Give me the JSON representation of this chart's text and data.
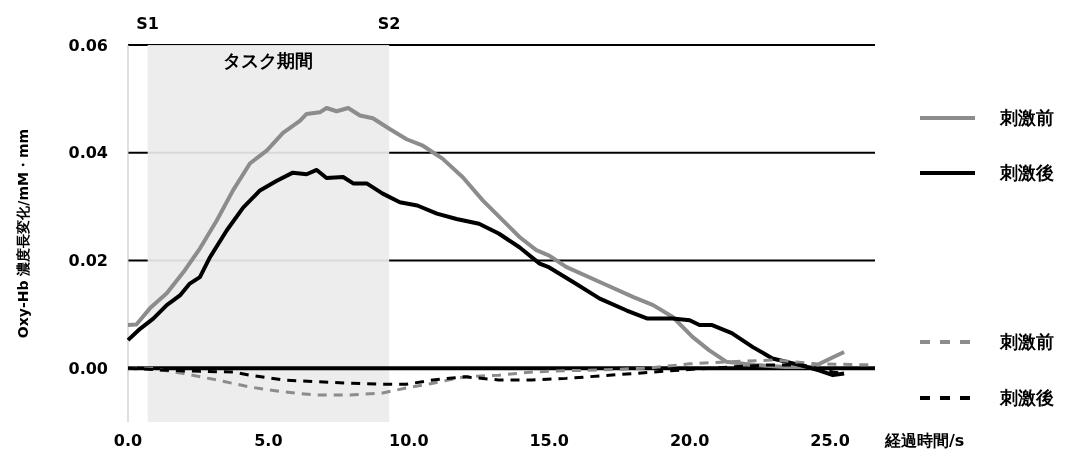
{
  "chart_data": {
    "type": "line",
    "xlabel": "経過時間/s",
    "ylabel": "Oxy-Hb 濃度長変化/mM・mm",
    "xlim": [
      0,
      26.6
    ],
    "ylim": [
      -0.01,
      0.06
    ],
    "xticks": [
      {
        "value": 0,
        "label": "0.0"
      },
      {
        "value": 5,
        "label": "5.0"
      },
      {
        "value": 10,
        "label": "10.0"
      },
      {
        "value": 15,
        "label": "15.0"
      },
      {
        "value": 20,
        "label": "20.0"
      },
      {
        "value": 25,
        "label": "25.0"
      }
    ],
    "yticks": [
      {
        "value": 0,
        "label": "0.00"
      },
      {
        "value": 0.02,
        "label": "0.02"
      },
      {
        "value": 0.04,
        "label": "0.04"
      },
      {
        "value": 0.06,
        "label": "0.06"
      }
    ],
    "grid": "y",
    "legend": "right",
    "marker": "none",
    "bands": [
      {
        "axis": "x",
        "from": 0.7,
        "to": 9.3,
        "label": "タスク期間",
        "color": "#ebebeb"
      }
    ],
    "annotations": [
      "S1",
      "S2"
    ],
    "series": [
      {
        "name": "刺激前",
        "color": "#8c8c8c",
        "line_style": "solid",
        "x": [
          0,
          0.3,
          0.78,
          1.38,
          1.97,
          2.56,
          3.16,
          3.74,
          4.34,
          4.94,
          5.52,
          6.12,
          6.36,
          6.83,
          7.07,
          7.43,
          7.84,
          8.26,
          8.72,
          9.32,
          9.92,
          10.5,
          11.2,
          11.93,
          12.64,
          13.24,
          13.95,
          14.54,
          15.0,
          15.6,
          16.8,
          18.0,
          18.7,
          19.4,
          20.1,
          20.7,
          21.3,
          22.3,
          23.4,
          24.4,
          24.9,
          25.5
        ],
        "values": [
          0.008,
          0.0081,
          0.0111,
          0.0139,
          0.0178,
          0.0222,
          0.0274,
          0.033,
          0.038,
          0.0404,
          0.0437,
          0.0459,
          0.0472,
          0.0475,
          0.0483,
          0.0477,
          0.0483,
          0.0469,
          0.0464,
          0.0444,
          0.0425,
          0.0413,
          0.0389,
          0.0354,
          0.0311,
          0.028,
          0.0243,
          0.0219,
          0.0209,
          0.0188,
          0.016,
          0.0132,
          0.0117,
          0.0095,
          0.0058,
          0.0033,
          0.0012,
          0.0006,
          0.0002,
          0.0002,
          0.0015,
          0.003
        ]
      },
      {
        "name": "刺激後",
        "color": "#000000",
        "line_style": "solid",
        "x": [
          0,
          0.43,
          0.9,
          1.38,
          1.85,
          2.2,
          2.56,
          2.92,
          3.52,
          4.1,
          4.7,
          5.3,
          5.87,
          6.36,
          6.72,
          7.07,
          7.66,
          8.02,
          8.5,
          9.07,
          9.68,
          10.3,
          11.0,
          11.7,
          12.5,
          13.2,
          13.95,
          14.66,
          15.0,
          15.85,
          16.8,
          17.76,
          18.5,
          19.4,
          20.0,
          20.35,
          20.8,
          21.5,
          22.25,
          22.95,
          23.9,
          24.6,
          25.1,
          25.5
        ],
        "values": [
          0.0052,
          0.0073,
          0.0092,
          0.0117,
          0.0135,
          0.0157,
          0.0169,
          0.0206,
          0.0256,
          0.0298,
          0.033,
          0.0348,
          0.0363,
          0.036,
          0.0368,
          0.0353,
          0.0355,
          0.0343,
          0.0343,
          0.0324,
          0.0308,
          0.0302,
          0.0287,
          0.0277,
          0.0268,
          0.025,
          0.0224,
          0.0194,
          0.0187,
          0.016,
          0.0129,
          0.0107,
          0.0092,
          0.0092,
          0.0089,
          0.008,
          0.008,
          0.0065,
          0.0039,
          0.0018,
          0.0006,
          -0.0004,
          -0.0013,
          -0.001
        ]
      },
      {
        "name": "刺激前",
        "color": "#8c8c8c",
        "line_style": "dashed",
        "x": [
          0,
          0.8,
          1.97,
          3.16,
          4.34,
          5.52,
          6.7,
          7.9,
          9.07,
          9.9,
          10.86,
          12.0,
          13.2,
          14.4,
          15.5,
          17.0,
          18.5,
          20.0,
          21.5,
          23.0,
          24.5,
          26.5
        ],
        "values": [
          0,
          0,
          -0.001,
          -0.0022,
          -0.0035,
          -0.0044,
          -0.005,
          -0.005,
          -0.0046,
          -0.0037,
          -0.0028,
          -0.0016,
          -0.0013,
          -0.0007,
          -0.0005,
          -0.0003,
          0,
          0.0008,
          0.0012,
          0.0015,
          0.0008,
          0.0006
        ]
      },
      {
        "name": "刺激後",
        "color": "#000000",
        "line_style": "dashed",
        "x": [
          0,
          1.38,
          2.56,
          3.74,
          4.34,
          5.52,
          6.7,
          7.9,
          9.07,
          9.9,
          10.86,
          12.0,
          13.2,
          14.4,
          15.6,
          18.0,
          20.1,
          22.8,
          24.0,
          25.1,
          25.5
        ],
        "values": [
          0,
          -0.0004,
          -0.0006,
          -0.0007,
          -0.0013,
          -0.0022,
          -0.0025,
          -0.0028,
          -0.003,
          -0.003,
          -0.0022,
          -0.0016,
          -0.0022,
          -0.0022,
          -0.0019,
          -0.001,
          -0.0002,
          0.0006,
          0.0006,
          -0.0007,
          -0.001
        ]
      }
    ]
  }
}
